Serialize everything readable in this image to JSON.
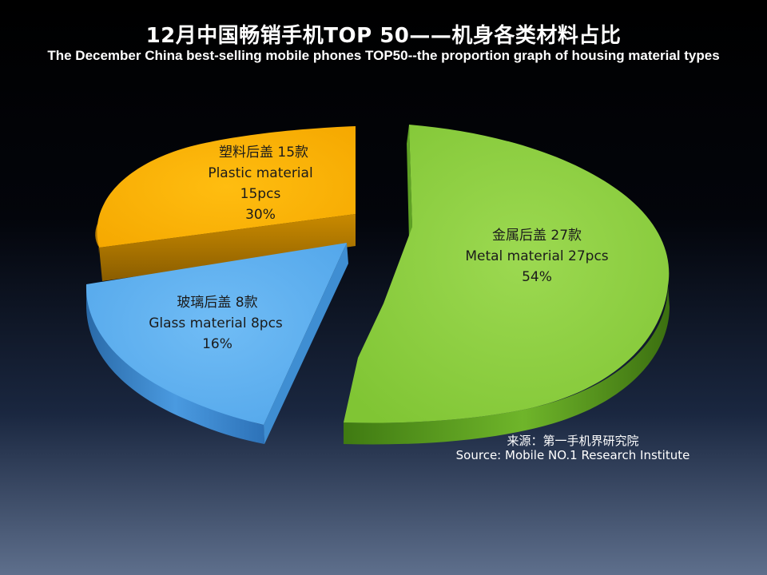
{
  "title": "12月中国畅销手机TOP 50——机身各类材料占比",
  "subtitle": "The December China best-selling mobile phones TOP50--the proportion graph of housing material types",
  "source": {
    "cn": "来源：第一手机界研究院",
    "en": "Source: Mobile NO.1  Research Institute"
  },
  "chart_data": {
    "type": "pie",
    "style": "3d-exploded",
    "slices": [
      {
        "cn": "金属后盖 27款",
        "en": "Metal material 27pcs",
        "count": 27,
        "percent": "54%",
        "value": 54,
        "color": "#8ccf3d"
      },
      {
        "cn": "玻璃后盖 8款",
        "en": "Glass material 8pcs",
        "count": 8,
        "percent": "16%",
        "value": 16,
        "color": "#5ab0f0"
      },
      {
        "cn": "塑料后盖 15款",
        "en": "Plastic material",
        "en2": "15pcs",
        "count": 15,
        "percent": "30%",
        "value": 30,
        "color": "#ffb500"
      }
    ]
  }
}
